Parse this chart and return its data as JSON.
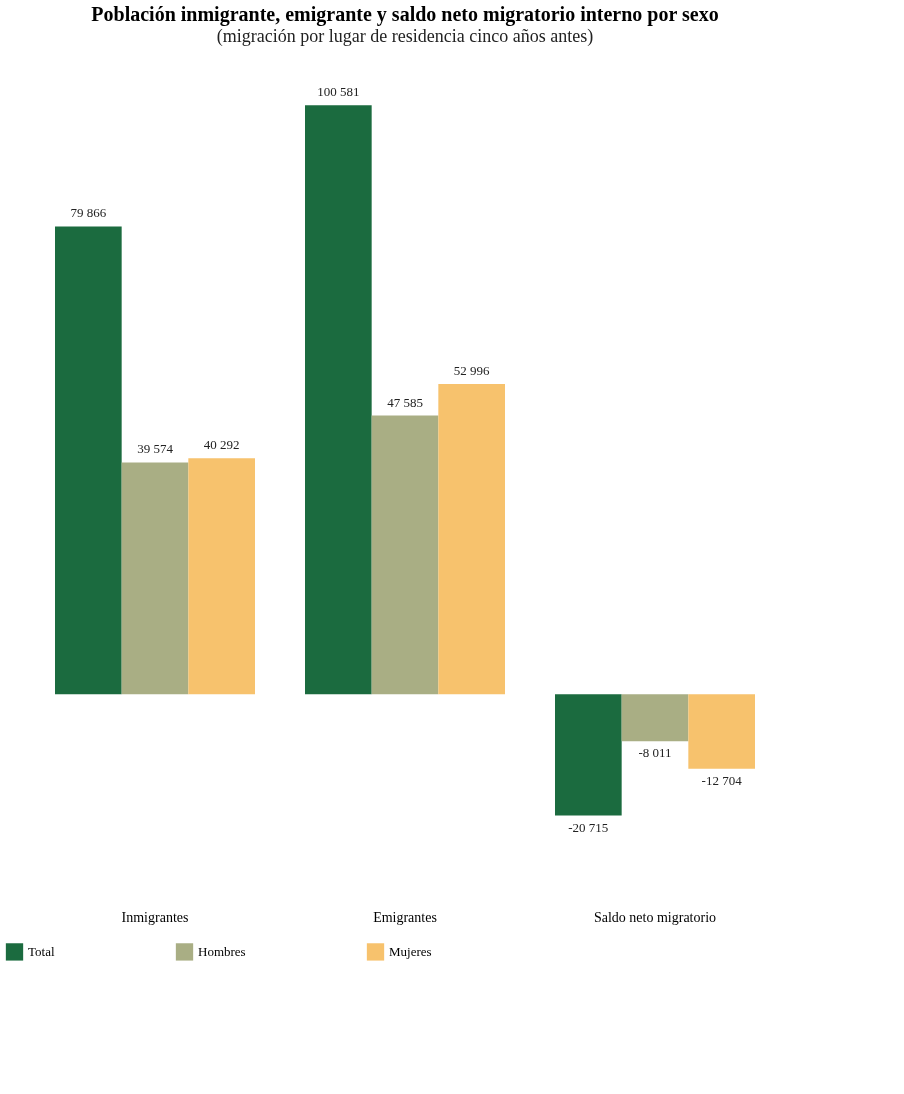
{
  "chart_data": {
    "type": "bar",
    "title": "Población inmigrante, emigrante y saldo neto migratorio interno por sexo",
    "subtitle": "(migración por lugar de residencia cinco años antes)",
    "categories": [
      "Inmigrantes",
      "Emigrantes",
      "Saldo neto migratorio"
    ],
    "series": [
      {
        "name": "Total",
        "color": "#1b6b3f",
        "values": [
          79866,
          100581,
          -20715
        ]
      },
      {
        "name": "Hombres",
        "color": "#a9ae84",
        "values": [
          39574,
          47585,
          -8011
        ]
      },
      {
        "name": "Mujeres",
        "color": "#f7c26d",
        "values": [
          40292,
          52996,
          -12704
        ]
      }
    ],
    "data_labels": true,
    "legend": "bottom",
    "grid": false
  }
}
